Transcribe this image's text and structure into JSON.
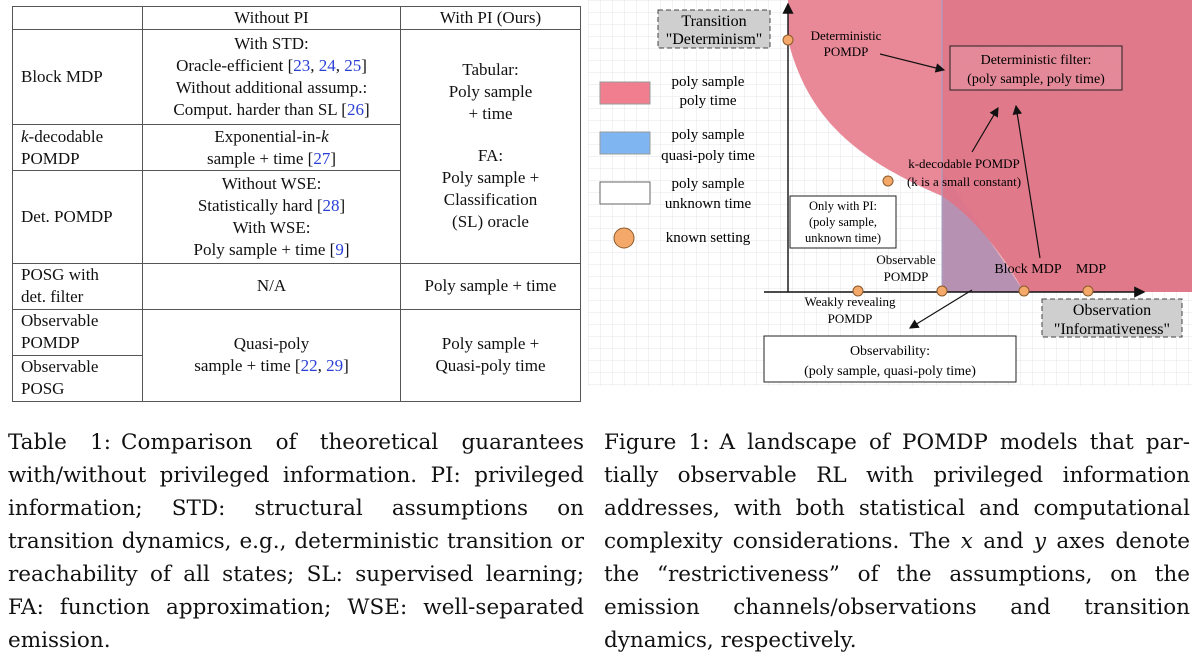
{
  "table": {
    "headers": [
      "",
      "Without PI",
      "With PI (Ours)"
    ],
    "rows": {
      "block_mdp": "Block MDP",
      "k_decodable_1": "-decodable",
      "k_decodable_k": "k",
      "k_decodable_2": "POMDP",
      "det_pomdp": "Det. POMDP",
      "posg_1": "POSG with",
      "posg_2": "det. filter",
      "obs_pomdp_1": "Observable",
      "obs_pomdp_2": "POMDP",
      "obs_posg_1": "Observable",
      "obs_posg_2": "POSG"
    },
    "without_pi": {
      "block_1": "With STD:",
      "block_2": "Oracle-efficient [",
      "block_2_c1": "23",
      "block_2_sep1": ", ",
      "block_2_c2": "24",
      "block_2_sep2": ", ",
      "block_2_c3": "25",
      "block_2_end": "]",
      "block_3": "Without additional assump.:",
      "block_4": "Comput. harder than SL [",
      "block_4_c": "26",
      "block_4_end": "]",
      "kdec_1": "Exponential-in-",
      "kdec_1_k": "k",
      "kdec_2": "sample + time [",
      "kdec_2_c": "27",
      "kdec_2_end": "]",
      "det_1": "Without WSE:",
      "det_2": "Statistically hard [",
      "det_2_c": "28",
      "det_2_end": "]",
      "det_3": "With WSE:",
      "det_4": "Poly sample + time [",
      "det_4_c": "9",
      "det_4_end": "]",
      "posg": "N/A",
      "obs_1": "Quasi-poly",
      "obs_2": "sample + time [",
      "obs_2_c1": "22",
      "obs_2_sep": ", ",
      "obs_2_c2": "29",
      "obs_2_end": "]"
    },
    "with_pi": {
      "tab_1": "Tabular:",
      "tab_2": "Poly sample",
      "tab_3": "+ time",
      "fa_1": "FA:",
      "fa_2": "Poly sample +",
      "fa_3": "Classification",
      "fa_4": "(SL) oracle",
      "posg": "Poly sample + time",
      "obs_1": "Poly sample +",
      "obs_2": "Quasi-poly time"
    }
  },
  "figure": {
    "y_axis_label_1": "Transition",
    "y_axis_label_2": "\"Determinism\"",
    "x_axis_label_1": "Observation",
    "x_axis_label_2": "\"Informativeness\"",
    "legend": {
      "red_1": "poly sample",
      "red_2": "poly time",
      "blue_1": "poly sample",
      "blue_2": "quasi-poly time",
      "white_1": "poly sample",
      "white_2": "unknown time",
      "dot": "known setting"
    },
    "points": {
      "det_pomdp_1": "Deterministic",
      "det_pomdp_2": "POMDP",
      "kdec_1": "k-decodable POMDP",
      "kdec_2": "(k is a small constant)",
      "obs_pomdp_1": "Observable",
      "obs_pomdp_2": "POMDP",
      "weak_1": "Weakly revealing",
      "weak_2": "POMDP",
      "block_mdp": "Block MDP",
      "mdp": "MDP"
    },
    "boxes": {
      "det_filter_1": "Deterministic filter:",
      "det_filter_2": "(poly sample, poly time)",
      "only_pi_1": "Only with PI:",
      "only_pi_2": "(poly sample,",
      "only_pi_3": "unknown time)",
      "observ_1": "Observability:",
      "observ_2": "(poly sample, quasi-poly time)"
    },
    "colors": {
      "red": "#e77f8f",
      "blue": "#8fbff0",
      "dot": "#f4a86a"
    }
  },
  "captions": {
    "table_label": "Table 1:",
    "table_text": "Comparison of theoretical guaran­tees with/without privileged information. PI: privileged information; STD: structural assump­tions on transition dynamics, e.g., deterministic transition or reachability of all states; SL: su­pervised learning; FA: function approximation; WSE: well-separated emission.",
    "figure_label": "Figure 1:",
    "figure_text": "A landscape of POMDP models that par­tially observable RL with privileged information addresses, with both statistical and computational complexity considerations. The",
    "figure_x": "x",
    "figure_and": "and",
    "figure_y": "y",
    "figure_text_2": "axes de­note the “restrictiveness” of the assumptions, on the emission channels/observations and transition dynamics, respectively."
  }
}
